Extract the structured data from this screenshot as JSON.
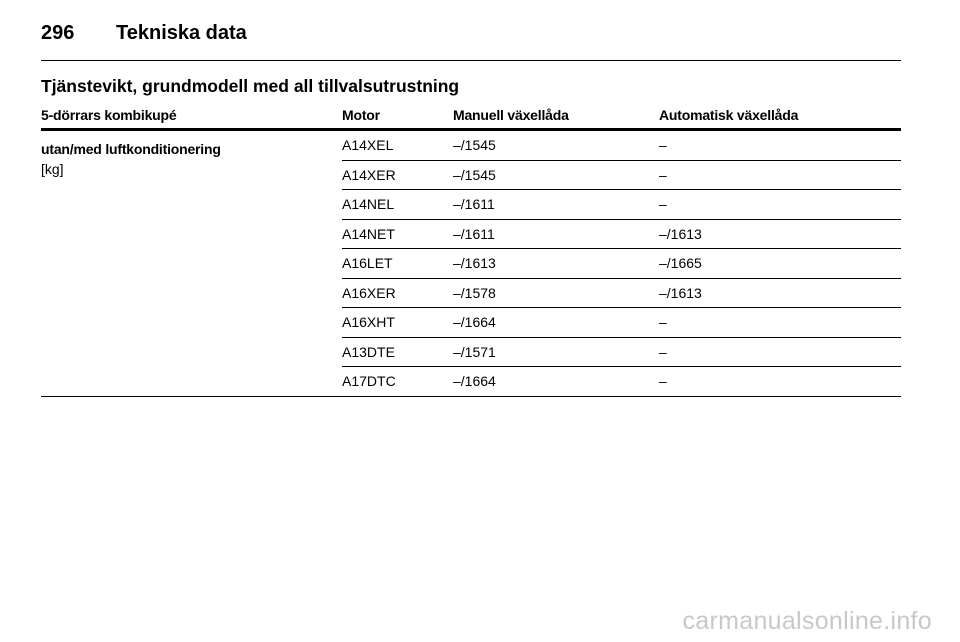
{
  "header": {
    "page_number": "296",
    "chapter_title": "Tekniska data"
  },
  "section": {
    "title": "Tjänstevikt, grundmodell med all tillvalsutrustning"
  },
  "table": {
    "columns": [
      "5-dörrars kombikupé",
      "Motor",
      "Manuell växellåda",
      "Automatisk växellåda"
    ],
    "group_label": "utan/med luftkonditionering",
    "group_unit": "[kg]",
    "rows": [
      {
        "motor": "A14XEL",
        "manual": "–/1545",
        "automatic": "–"
      },
      {
        "motor": "A14XER",
        "manual": "–/1545",
        "automatic": "–"
      },
      {
        "motor": "A14NEL",
        "manual": "–/1611",
        "automatic": "–"
      },
      {
        "motor": "A14NET",
        "manual": "–/1611",
        "automatic": "–/1613"
      },
      {
        "motor": "A16LET",
        "manual": "–/1613",
        "automatic": "–/1665"
      },
      {
        "motor": "A16XER",
        "manual": "–/1578",
        "automatic": "–/1613"
      },
      {
        "motor": "A16XHT",
        "manual": "–/1664",
        "automatic": "–"
      },
      {
        "motor": "A13DTE",
        "manual": "–/1571",
        "automatic": "–"
      },
      {
        "motor": "A17DTC",
        "manual": "–/1664",
        "automatic": "–"
      }
    ]
  },
  "watermark": "carmanualsonline.info"
}
